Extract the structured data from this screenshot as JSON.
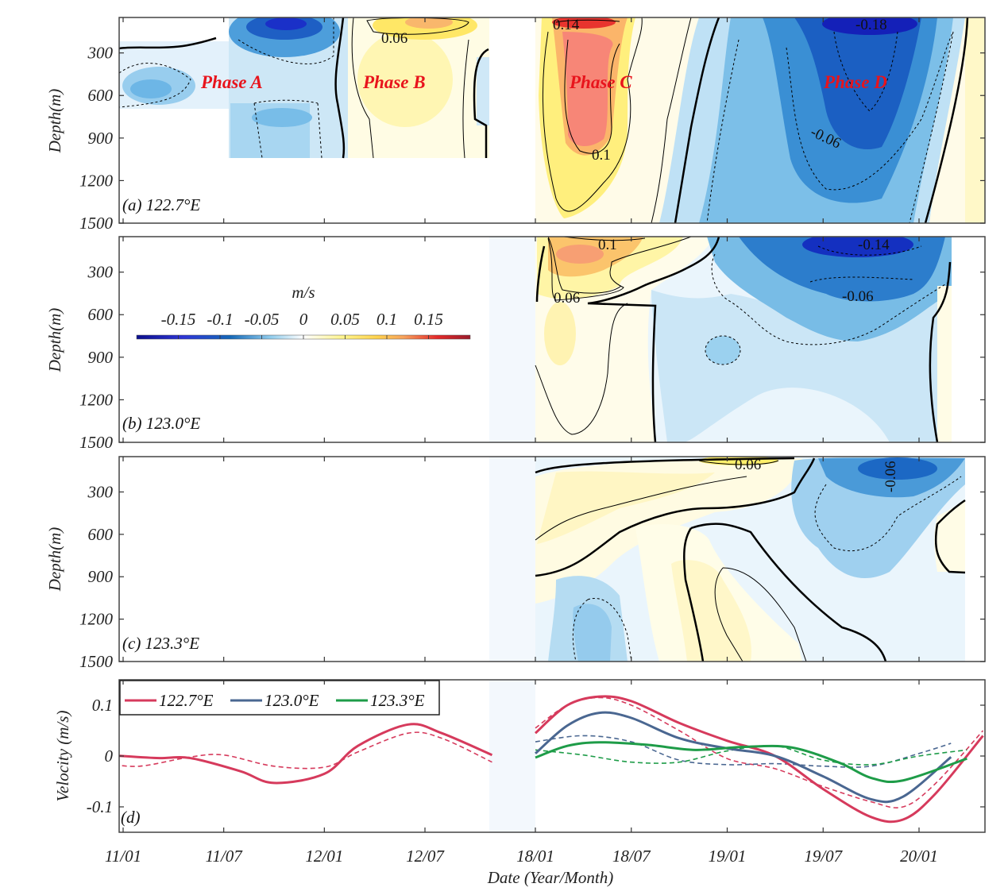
{
  "chart_data": {
    "type": "heatmap",
    "figure_layout": "4 stacked panels: three depth-time velocity sections (a-c) and one velocity time series (d)",
    "x_axis": {
      "label": "Date (Year/Month)",
      "tick_labels": [
        "11/01",
        "11/07",
        "12/01",
        "12/07",
        "18/01",
        "18/07",
        "19/01",
        "19/07",
        "20/01"
      ],
      "segments": [
        {
          "name": "segment-2011-2012",
          "range": [
            "2010/12",
            "2012/11"
          ]
        },
        {
          "name": "segment-2018-2020",
          "range": [
            "2018/01",
            "2020/05"
          ]
        }
      ],
      "gap_shaded": true
    },
    "colorbar": {
      "title": "m/s",
      "tick_labels": [
        "-0.15",
        "-0.1",
        "-0.05",
        "0",
        "0.05",
        "0.1",
        "0.15"
      ],
      "range": [
        -0.2,
        0.2
      ],
      "colormap": "blue-white-yellow-red",
      "colors": [
        "#0b0f8c",
        "#2e35d6",
        "#1468b8",
        "#3f97d3",
        "#8ecbec",
        "#e8f5fc",
        "#ffffff",
        "#fffbe0",
        "#fff48a",
        "#ffd24d",
        "#f7a25c",
        "#f3726c",
        "#e52a2a",
        "#9a1b2b"
      ],
      "orientation": "horizontal",
      "placement": "inside panel (b), upper-left"
    },
    "panels": [
      {
        "id": "a",
        "label": "(a) 122.7°E",
        "ylabel": "Depth(m)",
        "y_tick_labels": [
          "300",
          "600",
          "900",
          "1200",
          "1500"
        ],
        "ylim": [
          50,
          1500
        ],
        "y_reversed": true,
        "phases": [
          {
            "name": "Phase A",
            "sign": "negative",
            "period": [
              "2011/01",
              "2011/10"
            ]
          },
          {
            "name": "Phase B",
            "sign": "positive",
            "period": [
              "2011/12",
              "2012/08"
            ]
          },
          {
            "name": "Phase C",
            "sign": "positive",
            "period": [
              "2018/01",
              "2018/10"
            ]
          },
          {
            "name": "Phase D",
            "sign": "negative",
            "period": [
              "2019/02",
              "2020/03"
            ]
          }
        ],
        "contour_labels": [
          "0.06",
          "0.14",
          "0.1",
          "-0.18",
          "-0.06"
        ],
        "extrema": {
          "max": 0.14,
          "min": -0.18
        }
      },
      {
        "id": "b",
        "label": "(b) 123.0°E",
        "ylabel": "Depth(m)",
        "y_tick_labels": [
          "300",
          "600",
          "900",
          "1200",
          "1500"
        ],
        "ylim": [
          50,
          1500
        ],
        "y_reversed": true,
        "contour_labels": [
          "0.1",
          "0.06",
          "-0.14",
          "-0.06"
        ],
        "extrema": {
          "max": 0.1,
          "min": -0.14
        }
      },
      {
        "id": "c",
        "label": "(c) 123.3°E",
        "ylabel": "Depth(m)",
        "y_tick_labels": [
          "300",
          "600",
          "900",
          "1200",
          "1500"
        ],
        "ylim": [
          50,
          1500
        ],
        "y_reversed": true,
        "contour_labels": [
          "0.06",
          "-0.06"
        ],
        "extrema": {
          "max": 0.06,
          "min": -0.08
        }
      },
      {
        "id": "d",
        "label": "(d)",
        "type": "line",
        "ylabel": "Velocity (m/s)",
        "y_tick_labels": [
          "0.1",
          "0",
          "-0.1"
        ],
        "ylim": [
          -0.15,
          0.15
        ],
        "legend": [
          "122.7°E",
          "123.0°E",
          "123.3°E"
        ],
        "legend_placement": "top-left",
        "series": [
          {
            "name": "122.7°E",
            "style": "solid",
            "color": "#d63a5c",
            "segment1": {
              "x": [
                "2010/12",
                "2011/03",
                "2011/05",
                "2011/08",
                "2011/10",
                "2012/01",
                "2012/03",
                "2012/06",
                "2012/08",
                "2012/11"
              ],
              "y": [
                0.002,
                -0.004,
                -0.004,
                -0.03,
                -0.053,
                -0.035,
                0.02,
                0.062,
                0.045,
                0.002
              ]
            },
            "segment2": {
              "x": [
                "2018/01",
                "2018/03",
                "2018/05",
                "2018/07",
                "2018/10",
                "2019/01",
                "2019/04",
                "2019/07",
                "2019/10",
                "2019/12",
                "2020/02",
                "2020/05"
              ],
              "y": [
                0.045,
                0.1,
                0.117,
                0.108,
                0.065,
                0.03,
                0.0,
                -0.065,
                -0.12,
                -0.125,
                -0.075,
                0.04
              ]
            }
          },
          {
            "name": "122.7°E",
            "style": "dashed",
            "color": "#d63a5c",
            "segment1": {
              "x": [
                "2010/12",
                "2011/02",
                "2011/05",
                "2011/07",
                "2011/10",
                "2012/01",
                "2012/03",
                "2012/06",
                "2012/08",
                "2012/11"
              ],
              "y": [
                -0.015,
                -0.02,
                -0.002,
                0.002,
                -0.02,
                -0.022,
                0.008,
                0.045,
                0.035,
                -0.012
              ]
            },
            "segment2": {
              "x": [
                "2018/01",
                "2018/03",
                "2018/05",
                "2018/07",
                "2018/10",
                "2019/01",
                "2019/04",
                "2019/07",
                "2019/10",
                "2019/12",
                "2020/02",
                "2020/05"
              ],
              "y": [
                0.055,
                0.1,
                0.115,
                0.1,
                0.05,
                -0.005,
                -0.025,
                -0.06,
                -0.09,
                -0.1,
                -0.055,
                0.05
              ]
            }
          },
          {
            "name": "123.0°E",
            "style": "solid",
            "color": "#4a6791",
            "segment2": {
              "x": [
                "2018/01",
                "2018/03",
                "2018/05",
                "2018/07",
                "2018/10",
                "2019/01",
                "2019/04",
                "2019/07",
                "2019/10",
                "2019/12",
                "2020/03"
              ],
              "y": [
                0.005,
                0.06,
                0.085,
                0.075,
                0.035,
                0.015,
                0.0,
                -0.04,
                -0.085,
                -0.08,
                -0.002
              ]
            }
          },
          {
            "name": "123.0°E",
            "style": "dashed",
            "color": "#4a6791",
            "segment2": {
              "x": [
                "2018/01",
                "2018/04",
                "2018/07",
                "2018/10",
                "2019/01",
                "2019/04",
                "2019/07",
                "2019/10",
                "2020/01",
                "2020/03"
              ],
              "y": [
                0.028,
                0.04,
                0.028,
                -0.008,
                -0.017,
                -0.015,
                -0.02,
                -0.02,
                0.005,
                0.025
              ]
            }
          },
          {
            "name": "123.3°E",
            "style": "solid",
            "color": "#1e9c48",
            "segment2": {
              "x": [
                "2018/01",
                "2018/03",
                "2018/05",
                "2018/08",
                "2018/11",
                "2019/02",
                "2019/05",
                "2019/08",
                "2019/10",
                "2019/12",
                "2020/04"
              ],
              "y": [
                -0.003,
                0.02,
                0.027,
                0.022,
                0.012,
                0.018,
                0.017,
                -0.013,
                -0.043,
                -0.048,
                -0.005
              ]
            }
          },
          {
            "name": "123.3°E",
            "style": "dashed",
            "color": "#1e9c48",
            "segment2": {
              "x": [
                "2018/01",
                "2018/04",
                "2018/07",
                "2018/10",
                "2019/01",
                "2019/04",
                "2019/07",
                "2019/10",
                "2020/01",
                "2020/04"
              ],
              "y": [
                0.012,
                0.002,
                -0.012,
                -0.012,
                0.01,
                0.02,
                -0.008,
                -0.017,
                0.0,
                0.012
              ]
            }
          }
        ]
      }
    ]
  }
}
